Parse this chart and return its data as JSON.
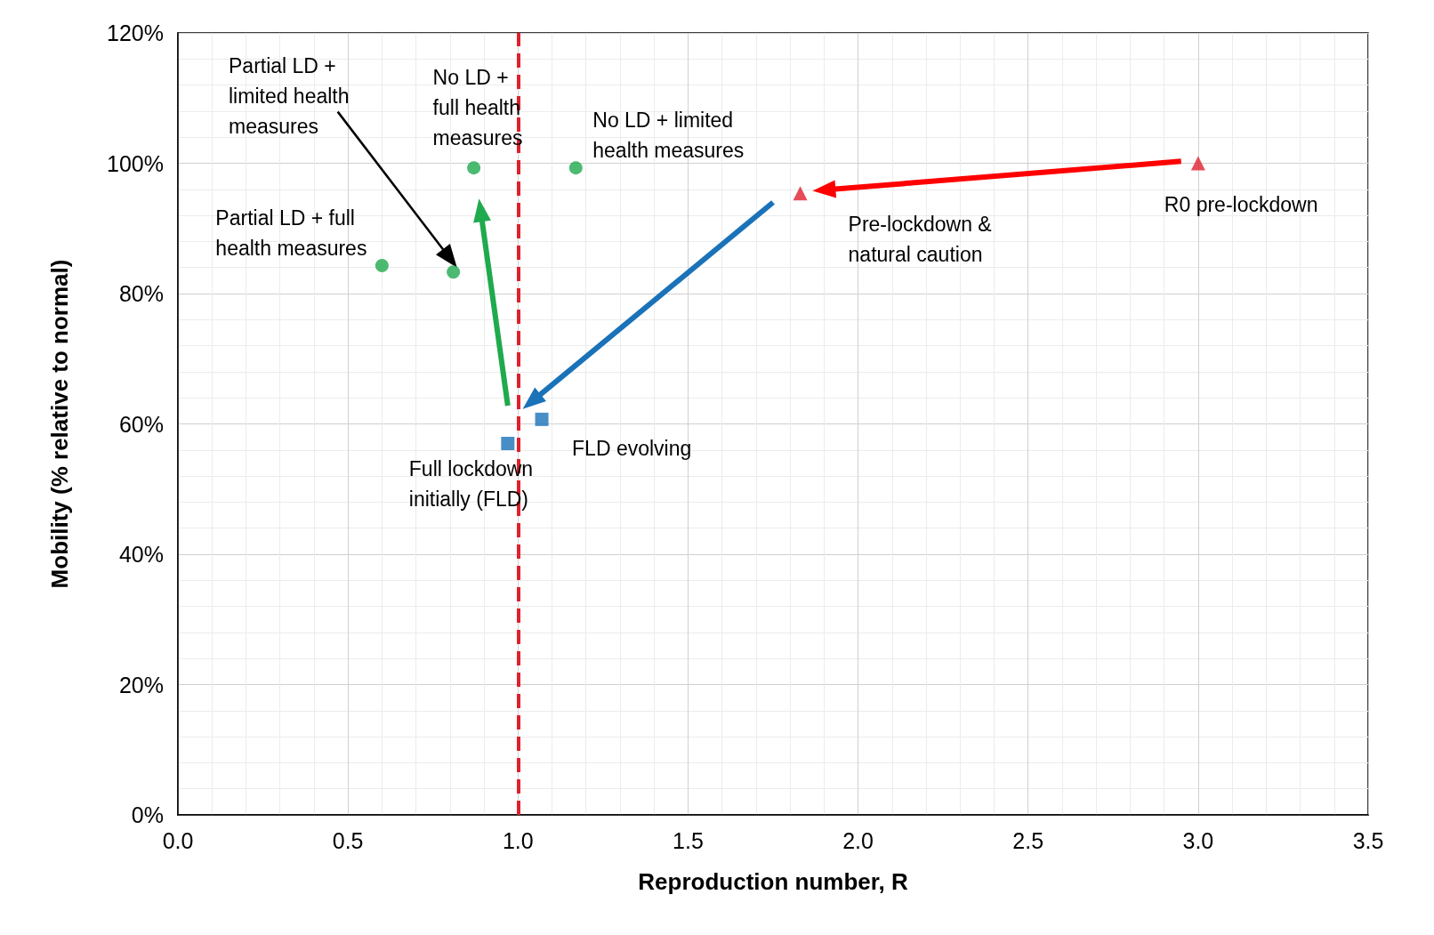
{
  "chart_data": {
    "type": "scatter",
    "xlabel": "Reproduction number, R",
    "ylabel": "Mobility (% relative to normal)",
    "xlim": [
      0,
      3.5
    ],
    "ylim": [
      0,
      120
    ],
    "xticks": [
      {
        "value": 0,
        "label": "0.0"
      },
      {
        "value": 0.5,
        "label": "0.5"
      },
      {
        "value": 1,
        "label": "1.0"
      },
      {
        "value": 1.5,
        "label": "1.5"
      },
      {
        "value": 2,
        "label": "2.0"
      },
      {
        "value": 2.5,
        "label": "2.5"
      },
      {
        "value": 3,
        "label": "3.0"
      },
      {
        "value": 3.5,
        "label": "3.5"
      }
    ],
    "yticks": [
      {
        "value": 0,
        "label": "0%"
      },
      {
        "value": 20,
        "label": "20%"
      },
      {
        "value": 40,
        "label": "40%"
      },
      {
        "value": 60,
        "label": "60%"
      },
      {
        "value": 80,
        "label": "80%"
      },
      {
        "value": 100,
        "label": "100%"
      },
      {
        "value": 120,
        "label": "120%"
      }
    ],
    "grid": true,
    "series": [
      {
        "marker": "triangle",
        "color": "#e0202e",
        "x": [
          3.0,
          1.83
        ],
        "values": [
          100,
          95.4
        ]
      },
      {
        "marker": "square",
        "color": "#1a72b8",
        "x": [
          0.97,
          1.07
        ],
        "values": [
          57,
          60.7
        ]
      },
      {
        "marker": "circle",
        "color": "#1faa4e",
        "x": [
          0.6,
          0.81,
          0.87,
          1.17
        ],
        "values": [
          84.3,
          83.3,
          99.3,
          99.3
        ]
      },
      {
        "type": "line",
        "line_style": "solid",
        "color": "#ff0000",
        "x": [
          2.95,
          1.9
        ],
        "values": [
          100.3,
          95.9
        ]
      },
      {
        "type": "line",
        "line_style": "solid",
        "color": "#1a72b8",
        "x": [
          1.75,
          1.04
        ],
        "values": [
          94,
          63.4
        ]
      },
      {
        "type": "line",
        "line_style": "solid",
        "color": "#1faa4e",
        "x": [
          0.97,
          0.89
        ],
        "values": [
          62.8,
          92.8
        ]
      },
      {
        "type": "line",
        "line_style": "solid",
        "color": "#000000",
        "x": [
          0.47,
          0.8
        ],
        "values": [
          107.9,
          85.4
        ]
      }
    ],
    "ref_lines": [
      {
        "axis": "x",
        "value": 1,
        "color": "#e0202e",
        "line_style": "dashed"
      }
    ],
    "annotations": [
      "Partial LD +\nlimited health\nmeasures",
      {
        "text": "No LD +\nfull health\nmeasures",
        "x": 0.87,
        "y": 99.3
      },
      {
        "text": "No LD + limited\nhealth measures",
        "x": 1.17,
        "y": 99.3
      },
      {
        "text": "Partial LD + full\nhealth measures",
        "x": 0.6,
        "y": 84.3
      },
      {
        "text": "Pre-lockdown &\nnatural caution",
        "x": 1.83,
        "y": 95.4
      },
      {
        "text": "R0 pre-lockdown",
        "x": 3.0,
        "y": 100
      },
      {
        "text": "FLD evolving",
        "x": 1.07,
        "y": 60.7
      },
      {
        "text": "Full lockdown\ninitially (FLD)",
        "x": 0.97,
        "y": 57
      }
    ]
  }
}
